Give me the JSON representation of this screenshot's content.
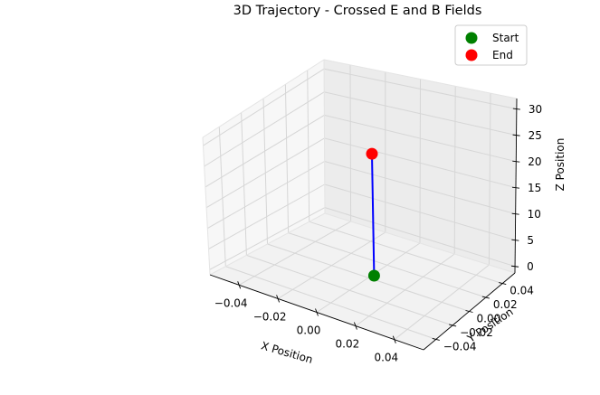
{
  "chart_data": {
    "type": "line3d",
    "title": "3D Trajectory - Crossed E and B Fields",
    "xlabel": "X Position",
    "ylabel": "Y Position",
    "zlabel": "Z Position",
    "x_ticks": [
      "−0.04",
      "−0.02",
      "0.00",
      "0.02",
      "0.04"
    ],
    "y_ticks": [
      "−0.04",
      "−0.02",
      "0.00",
      "0.02",
      "0.04"
    ],
    "z_ticks": [
      "0",
      "5",
      "10",
      "15",
      "20",
      "25",
      "30"
    ],
    "xlim": [
      -0.055,
      0.055
    ],
    "ylim": [
      -0.055,
      0.055
    ],
    "zlim": [
      -1.25,
      32
    ],
    "grid": true,
    "legend_position": "top-right",
    "series": [
      {
        "color": "#0000ff",
        "points": [
          {
            "x": 0.0,
            "y": 0.0,
            "z": 0.0
          },
          {
            "x": 0.0,
            "y": 0.0,
            "z": 26.0
          }
        ]
      }
    ],
    "markers": [
      {
        "label": "Start",
        "color": "#008000",
        "x": 0.0,
        "y": 0.0,
        "z": 0.0
      },
      {
        "label": "End",
        "color": "#ff0000",
        "x": 0.0,
        "y": 0.0,
        "z": 26.0
      }
    ]
  }
}
